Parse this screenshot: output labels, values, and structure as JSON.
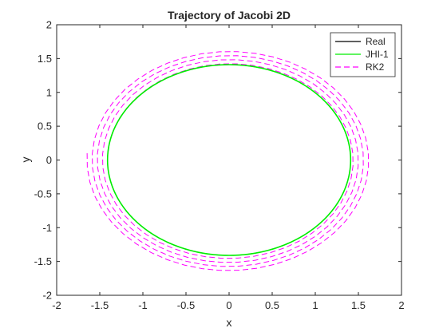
{
  "chart_data": {
    "type": "line",
    "title": "Trajectory of Jacobi 2D",
    "xlabel": "x",
    "ylabel": "y",
    "xlim": [
      -2,
      2
    ],
    "ylim": [
      -2,
      2
    ],
    "xticks": [
      "-2",
      "-1.5",
      "-1",
      "-0.5",
      "0",
      "0.5",
      "1",
      "1.5",
      "2"
    ],
    "yticks": [
      "-2",
      "-1.5",
      "-1",
      "-0.5",
      "0",
      "0.5",
      "1",
      "1.5",
      "2"
    ],
    "grid": false,
    "legend_position": "top-right",
    "series": [
      {
        "name": "Real",
        "color": "#000000",
        "style": "solid",
        "shape": "ellipse",
        "center": [
          0,
          0
        ],
        "semi_axes": [
          1.41,
          1.41
        ]
      },
      {
        "name": "JHI-1",
        "color": "#00ee00",
        "style": "solid",
        "shape": "ellipse",
        "center": [
          0,
          0
        ],
        "semi_axes": [
          1.41,
          1.41
        ]
      },
      {
        "name": "RK2",
        "color": "#ff00ff",
        "style": "dashed",
        "shape": "outward spiral",
        "start": [
          -1.65,
          0.1
        ],
        "radius_range": [
          1.41,
          1.65
        ],
        "turns": 4
      }
    ]
  }
}
